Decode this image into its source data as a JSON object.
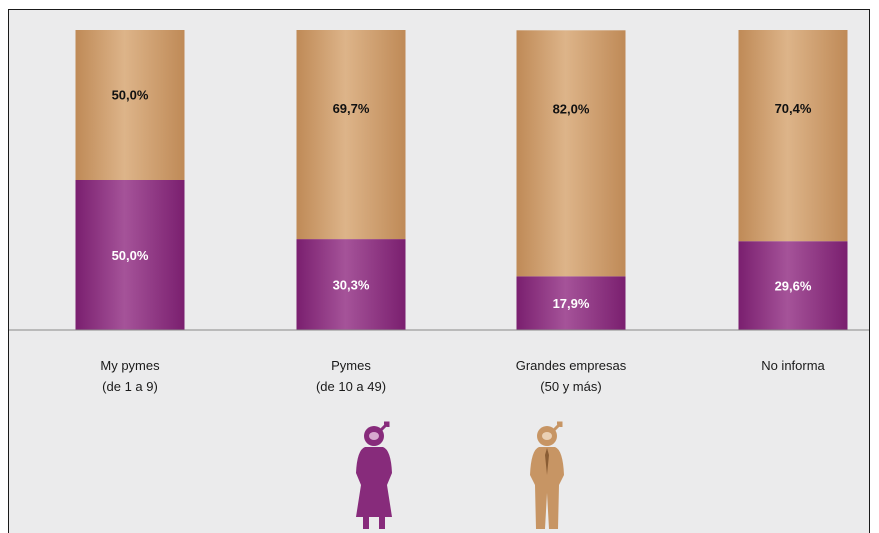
{
  "chart_data": {
    "type": "bar",
    "stacked": true,
    "categories": [
      "My pymes\n(de 1 a 9)",
      "Pymes\n(de 10 a 49)",
      "Grandes empresas\n(50 y más)",
      "No informa"
    ],
    "series": [
      {
        "values": [
          50.0,
          30.3,
          17.9,
          29.6
        ],
        "labels": [
          "50,0%",
          "30,3%",
          "17,9%",
          "29,6%"
        ],
        "color": "#872b7b"
      },
      {
        "values": [
          50.0,
          69.7,
          82.0,
          70.4
        ],
        "labels": [
          "50,0%",
          "69,7%",
          "82,0%",
          "70,4%"
        ],
        "color": "#c79564"
      }
    ],
    "ylim": [
      0,
      100
    ],
    "grid": false,
    "legend": "bottom-center pictograms (female and male figures)",
    "colors": {
      "female": "#872b7b",
      "male": "#c79564",
      "female_label": "#ffffff",
      "male_label": "#111111"
    }
  }
}
